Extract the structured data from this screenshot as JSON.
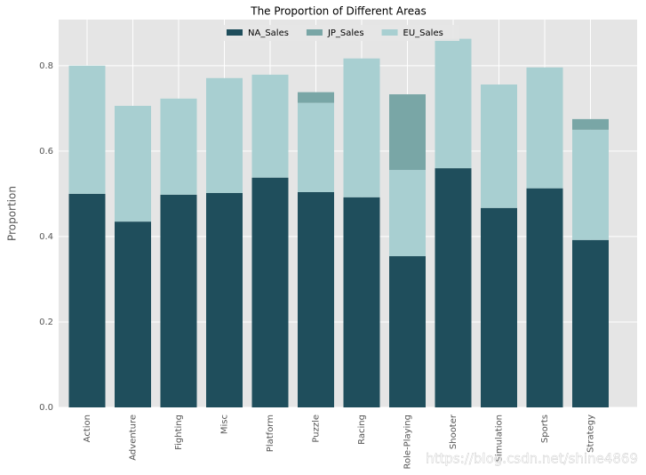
{
  "chart_data": {
    "type": "bar",
    "title": "The Proportion of Different Areas",
    "ylabel": "Proportion",
    "categories": [
      "Action",
      "Adventure",
      "Fighting",
      "Misc",
      "Platform",
      "Puzzle",
      "Racing",
      "Role-Playing",
      "Shooter",
      "Simulation",
      "Sports",
      "Strategy"
    ],
    "series": [
      {
        "name": "NA_Sales",
        "color": "#1f4e5c",
        "values": [
          0.5,
          0.435,
          0.498,
          0.502,
          0.538,
          0.504,
          0.492,
          0.354,
          0.56,
          0.467,
          0.513,
          0.392
        ]
      },
      {
        "name": "JP_Sales",
        "color": "#79a6a6",
        "values": [
          null,
          null,
          null,
          null,
          null,
          0.025,
          null,
          0.177,
          null,
          null,
          null,
          0.025
        ]
      },
      {
        "name": "EU_Sales",
        "color": "#a8cfd1",
        "values": [
          0.3,
          0.271,
          0.225,
          0.269,
          0.241,
          0.209,
          0.325,
          0.202,
          0.303,
          0.289,
          0.283,
          0.258
        ]
      }
    ],
    "stack_order": [
      "NA_Sales",
      "EU_Sales",
      "JP_Sales"
    ],
    "ylim": [
      0,
      0.908
    ],
    "yticks": [
      {
        "value": 0,
        "label": "0.0"
      },
      0.2,
      0.4,
      0.6,
      0.8
    ],
    "grid": true,
    "legend": "upper center",
    "watermark": "https://blog.csdn.net/shine4869"
  }
}
